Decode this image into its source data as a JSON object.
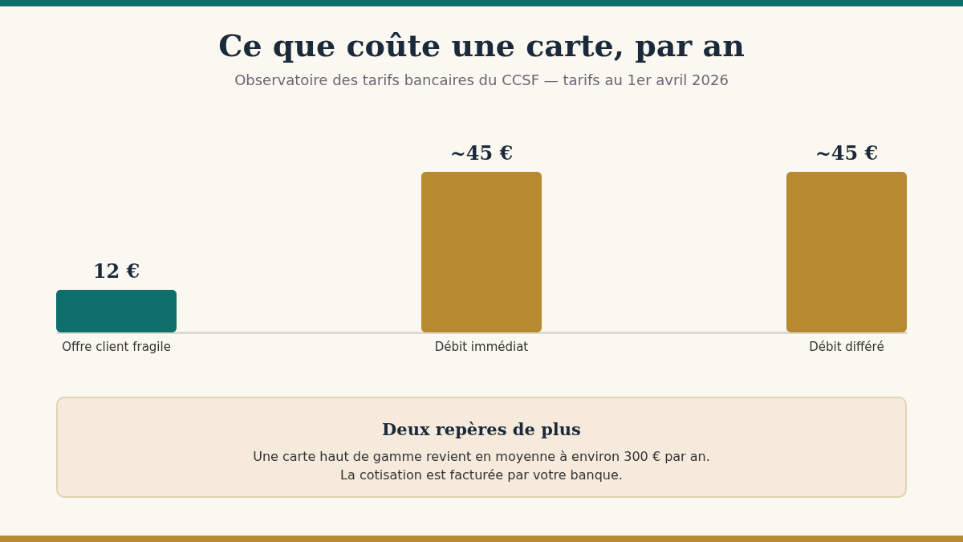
{
  "chart_data": {
    "type": "bar",
    "title": "Ce que coûte une carte, par an",
    "subtitle": "Observatoire des tarifs bancaires du CCSF — tarifs au 1er avril 2026",
    "categories": [
      "Offre client\nfragile",
      "Débit\nimmédiat",
      "Débit\ndifféré"
    ],
    "values": [
      12,
      45,
      45
    ],
    "colors": [
      "#0e6e6b",
      "#b88a30",
      "#b88a30"
    ],
    "value_labels": [
      "12 €",
      "~45 €",
      "~45 €"
    ],
    "annotations": [
      "Deux repères de plus",
      "Une carte haut de gamme revient en moyenne à environ 300 € par an.",
      "La cotisation est facturée par votre banque."
    ]
  }
}
